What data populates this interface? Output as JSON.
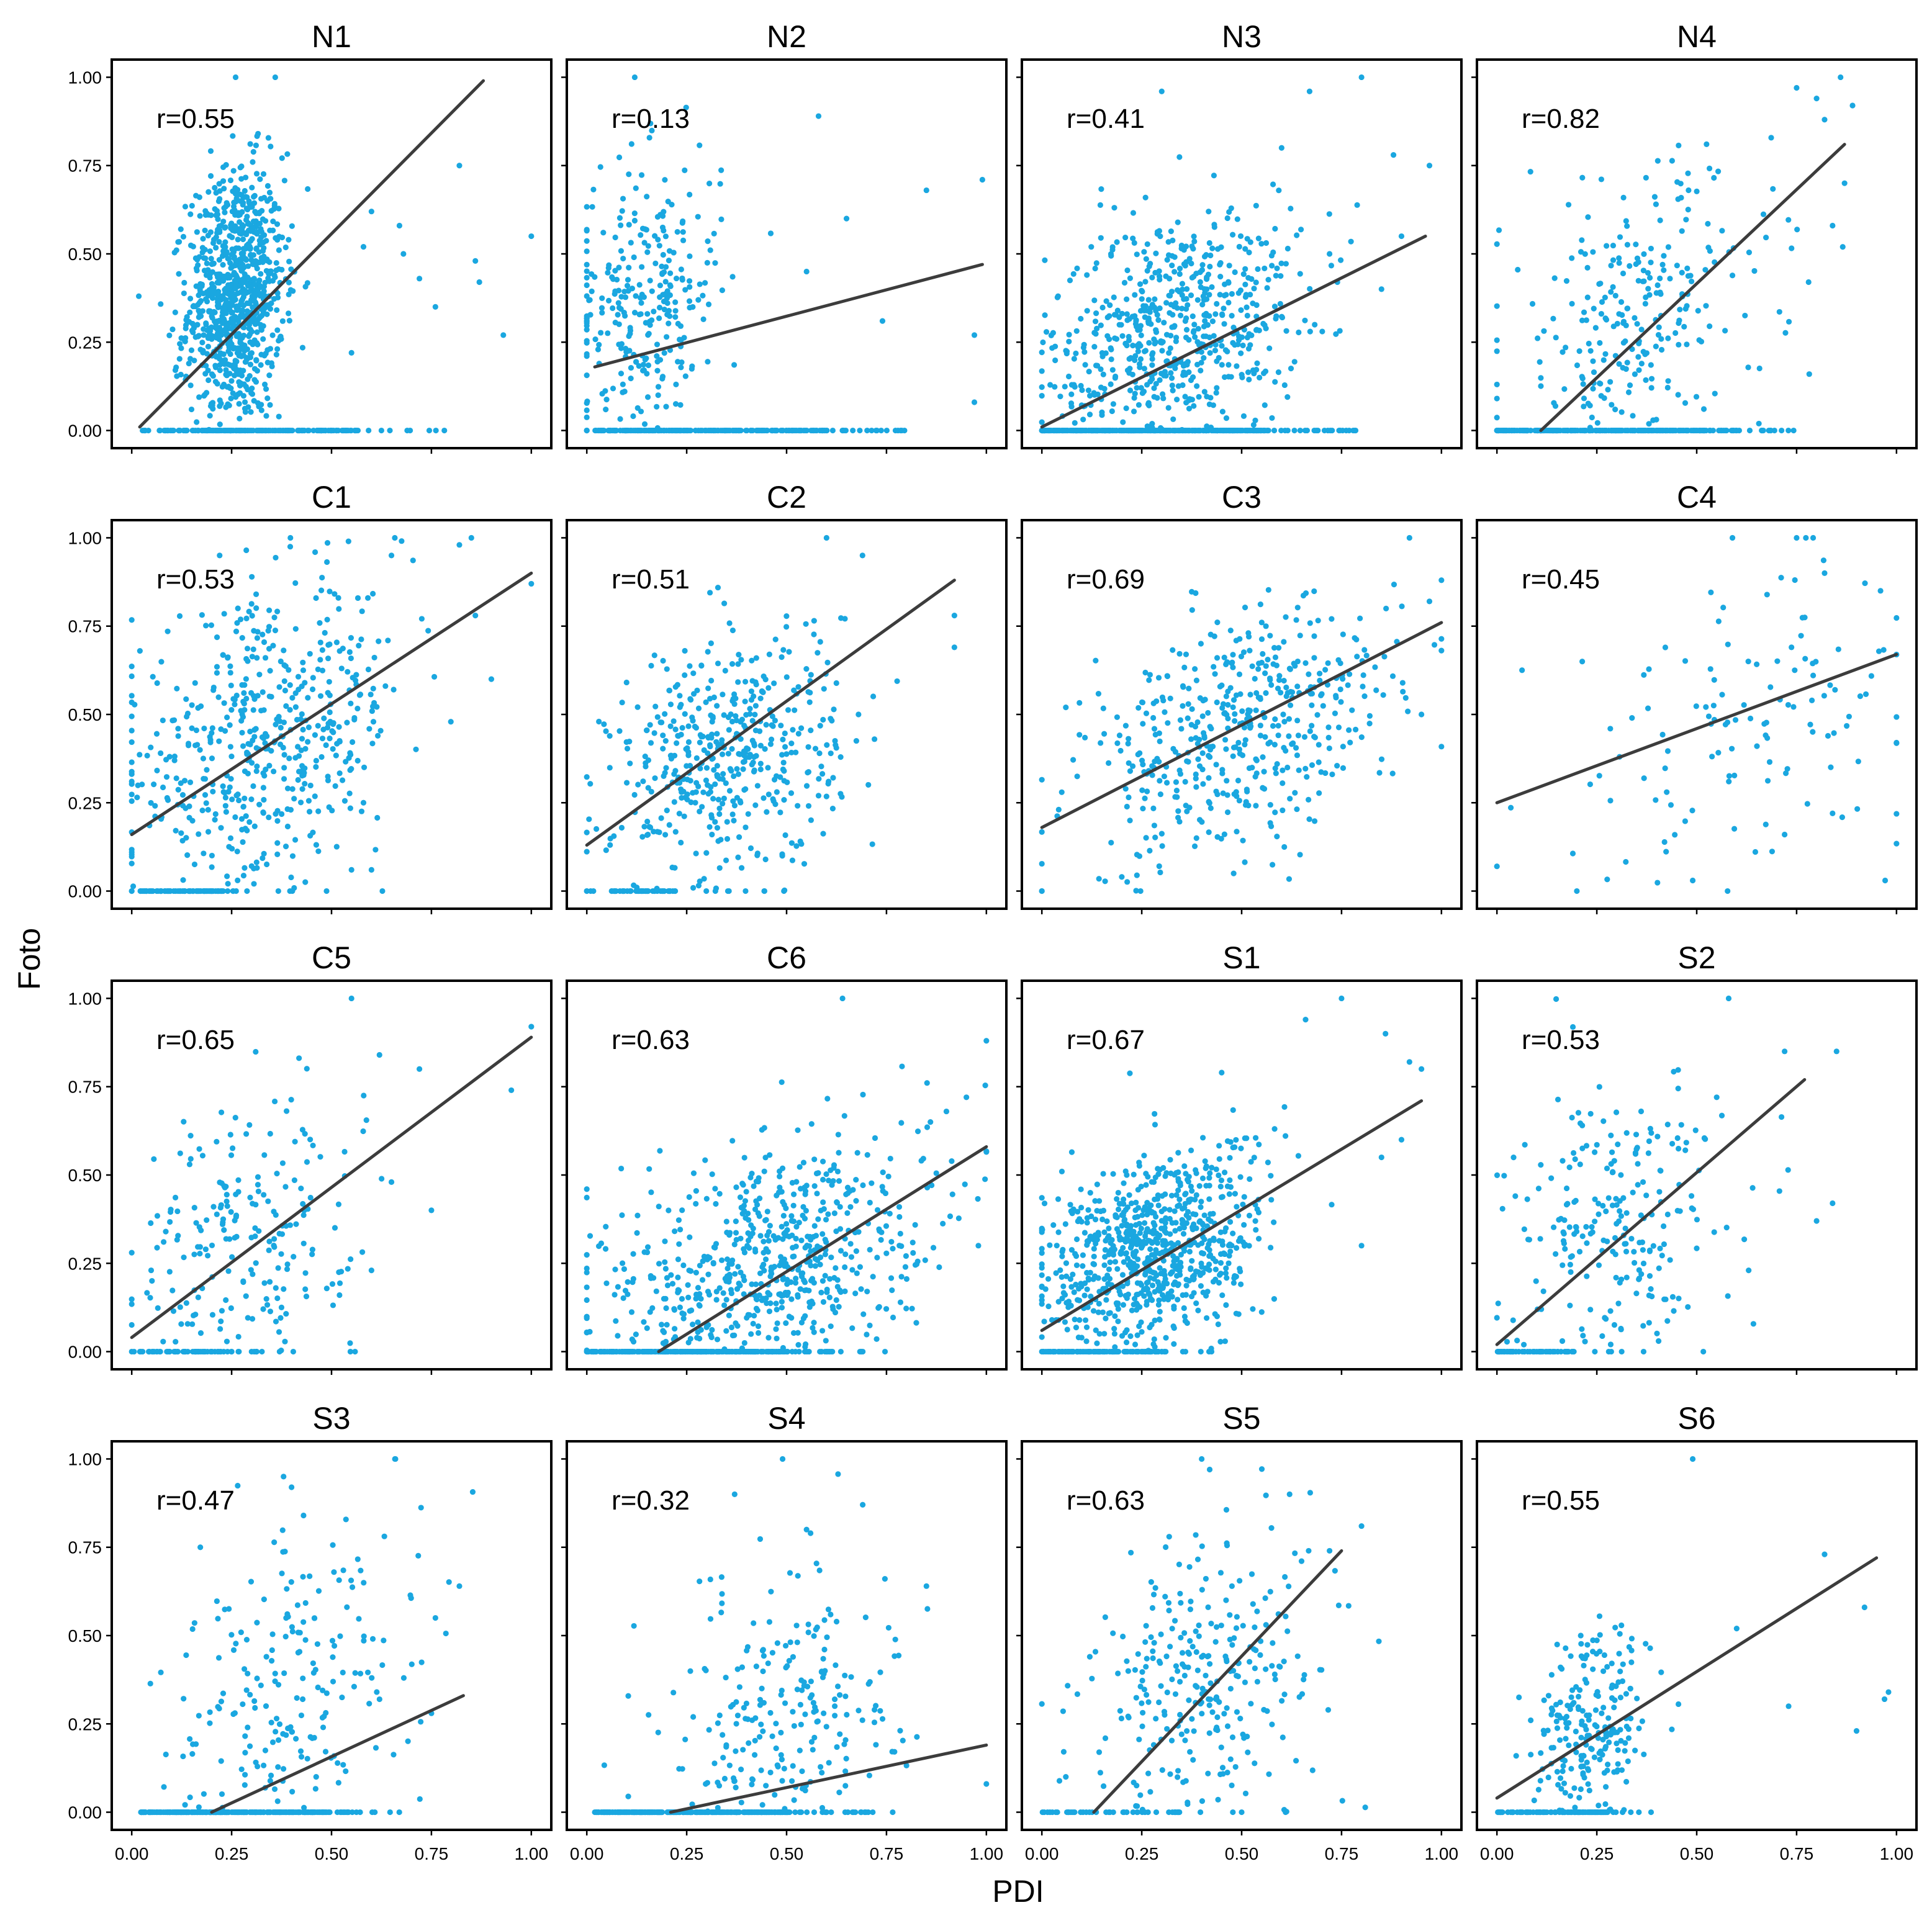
{
  "chart_data": {
    "type": "scatter",
    "layout": "4x4 facet grid",
    "xlabel": "PDI",
    "ylabel": "Foto",
    "xlim": [
      -0.05,
      1.05
    ],
    "ylim": [
      -0.05,
      1.05
    ],
    "x_ticks": [
      "0.00",
      "0.25",
      "0.50",
      "0.75",
      "1.00"
    ],
    "y_ticks": [
      "0.00",
      "0.25",
      "0.50",
      "0.75",
      "1.00"
    ],
    "point_color": "#1aa7e0",
    "line_color": "#3c3c3c",
    "panels": [
      {
        "title": "N1",
        "r": "r=0.55",
        "line": [
          [
            0.02,
            0.01
          ],
          [
            0.88,
            0.99
          ]
        ],
        "n": 1100,
        "x": [
          0.26,
          0.06
        ],
        "y": [
          0.38,
          0.18
        ],
        "zeroFrac": 0.16,
        "zeroX": [
          0.02,
          0.8
        ],
        "outliers": [
          [
            1.0,
            0.55
          ],
          [
            0.93,
            0.27
          ],
          [
            0.87,
            0.42
          ],
          [
            0.86,
            0.48
          ],
          [
            0.82,
            0.75
          ],
          [
            0.76,
            0.35
          ],
          [
            0.68,
            0.5
          ],
          [
            0.67,
            0.58
          ],
          [
            0.6,
            0.62
          ],
          [
            0.58,
            0.52
          ],
          [
            0.55,
            0.22
          ],
          [
            0.26,
            1.0
          ],
          [
            0.72,
            0.43
          ]
        ]
      },
      {
        "title": "N2",
        "r": "r=0.13",
        "line": [
          [
            0.02,
            0.18
          ],
          [
            0.99,
            0.47
          ]
        ],
        "n": 520,
        "x": [
          0.14,
          0.1
        ],
        "y": [
          0.36,
          0.2
        ],
        "zeroFrac": 0.42,
        "zeroX": [
          0.02,
          0.85
        ],
        "outliers": [
          [
            0.99,
            0.71
          ],
          [
            0.97,
            0.08
          ],
          [
            0.97,
            0.27
          ],
          [
            0.85,
            0.68
          ],
          [
            0.58,
            0.89
          ],
          [
            0.12,
            1.0
          ],
          [
            0.74,
            0.31
          ],
          [
            0.55,
            0.45
          ],
          [
            0.65,
            0.6
          ]
        ]
      },
      {
        "title": "N3",
        "r": "r=0.41",
        "line": [
          [
            0.0,
            0.01
          ],
          [
            0.96,
            0.55
          ]
        ],
        "n": 1000,
        "x": [
          0.33,
          0.16
        ],
        "y": [
          0.28,
          0.17
        ],
        "zeroFrac": 0.35,
        "zeroX": [
          0.0,
          0.8
        ],
        "outliers": [
          [
            0.8,
            1.0
          ],
          [
            0.97,
            0.75
          ],
          [
            0.67,
            0.96
          ],
          [
            0.85,
            0.4
          ],
          [
            0.88,
            0.78
          ],
          [
            0.72,
            0.5
          ],
          [
            0.6,
            0.8
          ],
          [
            0.9,
            0.55
          ],
          [
            0.3,
            0.96
          ]
        ]
      },
      {
        "title": "N4",
        "r": "r=0.82",
        "line": [
          [
            0.11,
            0.0
          ],
          [
            0.87,
            0.81
          ]
        ],
        "n": 560,
        "x": [
          0.35,
          0.17
        ],
        "y": [
          0.3,
          0.22
        ],
        "zeroFrac": 0.5,
        "zeroX": [
          0.0,
          0.75
        ],
        "outliers": [
          [
            0.86,
            1.0
          ],
          [
            0.89,
            0.92
          ],
          [
            0.8,
            0.94
          ],
          [
            0.87,
            0.7
          ],
          [
            0.84,
            0.58
          ],
          [
            0.78,
            0.42
          ],
          [
            0.75,
            0.97
          ],
          [
            0.82,
            0.88
          ]
        ]
      },
      {
        "title": "C1",
        "r": "r=0.53",
        "line": [
          [
            0.0,
            0.16
          ],
          [
            1.0,
            0.9
          ]
        ],
        "n": 600,
        "x": [
          0.33,
          0.18
        ],
        "y": [
          0.42,
          0.2
        ],
        "zeroFrac": 0.12,
        "zeroX": [
          0.02,
          0.32
        ],
        "outliers": [
          [
            1.0,
            0.87
          ],
          [
            0.85,
            1.0
          ],
          [
            0.82,
            0.98
          ],
          [
            0.65,
            0.95
          ],
          [
            0.9,
            0.6
          ],
          [
            0.86,
            0.78
          ],
          [
            0.58,
            0.25
          ],
          [
            0.6,
            0.06
          ],
          [
            0.55,
            0.06
          ],
          [
            0.22,
            0.95
          ]
        ]
      },
      {
        "title": "C2",
        "r": "r=0.51",
        "line": [
          [
            0.0,
            0.13
          ],
          [
            0.92,
            0.88
          ]
        ],
        "n": 520,
        "x": [
          0.35,
          0.14
        ],
        "y": [
          0.38,
          0.18
        ],
        "zeroFrac": 0.08,
        "zeroX": [
          0.06,
          0.28
        ],
        "outliers": [
          [
            0.92,
            0.78
          ],
          [
            0.92,
            0.69
          ],
          [
            0.72,
            0.43
          ],
          [
            0.6,
            1.0
          ],
          [
            0.69,
            0.95
          ],
          [
            0.58,
            0.27
          ],
          [
            0.0,
            0.0
          ],
          [
            0.68,
            0.5
          ]
        ]
      },
      {
        "title": "C3",
        "r": "r=0.69",
        "line": [
          [
            0.0,
            0.18
          ],
          [
            1.0,
            0.76
          ]
        ],
        "n": 480,
        "x": [
          0.5,
          0.2
        ],
        "y": [
          0.45,
          0.16
        ],
        "zeroFrac": 0.0,
        "zeroX": [
          0,
          0
        ],
        "outliers": [
          [
            0.0,
            0.0
          ],
          [
            0.92,
            1.0
          ],
          [
            1.0,
            0.88
          ],
          [
            0.97,
            0.82
          ],
          [
            0.2,
            0.04
          ],
          [
            0.48,
            0.05
          ],
          [
            0.06,
            0.52
          ],
          [
            0.95,
            0.5
          ]
        ]
      },
      {
        "title": "C4",
        "r": "r=0.45",
        "line": [
          [
            0.0,
            0.25
          ],
          [
            1.0,
            0.67
          ]
        ],
        "n": 120,
        "x": [
          0.62,
          0.22
        ],
        "y": [
          0.5,
          0.2
        ],
        "zeroFrac": 0.0,
        "zeroX": [
          0,
          0
        ],
        "outliers": [
          [
            0.0,
            0.07
          ],
          [
            0.2,
            0.0
          ],
          [
            0.49,
            0.03
          ],
          [
            0.75,
            1.0
          ],
          [
            0.82,
            0.9
          ],
          [
            0.96,
            0.85
          ],
          [
            1.0,
            0.42
          ],
          [
            0.84,
            0.22
          ],
          [
            0.72,
            0.16
          ]
        ]
      },
      {
        "title": "C5",
        "r": "r=0.65",
        "line": [
          [
            0.0,
            0.04
          ],
          [
            1.0,
            0.89
          ]
        ],
        "n": 280,
        "x": [
          0.28,
          0.14
        ],
        "y": [
          0.32,
          0.2
        ],
        "zeroFrac": 0.2,
        "zeroX": [
          0.02,
          0.35
        ],
        "outliers": [
          [
            1.0,
            0.92
          ],
          [
            0.95,
            0.74
          ],
          [
            0.55,
            1.0
          ],
          [
            0.62,
            0.84
          ],
          [
            0.72,
            0.8
          ],
          [
            0.75,
            0.4
          ],
          [
            0.6,
            0.23
          ],
          [
            0.65,
            0.48
          ],
          [
            0.52,
            0.16
          ]
        ]
      },
      {
        "title": "C6",
        "r": "r=0.63",
        "line": [
          [
            0.18,
            0.0
          ],
          [
            1.0,
            0.58
          ]
        ],
        "n": 900,
        "x": [
          0.45,
          0.2
        ],
        "y": [
          0.25,
          0.17
        ],
        "zeroFrac": 0.26,
        "zeroX": [
          0.0,
          0.72
        ],
        "outliers": [
          [
            1.0,
            0.88
          ],
          [
            0.64,
            1.0
          ],
          [
            0.98,
            0.3
          ],
          [
            0.95,
            0.72
          ],
          [
            0.9,
            0.68
          ],
          [
            0.86,
            0.65
          ]
        ]
      },
      {
        "title": "S1",
        "r": "r=0.67",
        "line": [
          [
            0.0,
            0.06
          ],
          [
            0.95,
            0.71
          ]
        ],
        "n": 900,
        "x": [
          0.28,
          0.14
        ],
        "y": [
          0.28,
          0.14
        ],
        "zeroFrac": 0.12,
        "zeroX": [
          0.0,
          0.45
        ],
        "outliers": [
          [
            0.75,
            1.0
          ],
          [
            0.66,
            0.94
          ],
          [
            0.86,
            0.9
          ],
          [
            0.92,
            0.82
          ],
          [
            0.95,
            0.8
          ],
          [
            0.8,
            0.3
          ],
          [
            0.9,
            0.6
          ],
          [
            0.85,
            0.55
          ],
          [
            0.45,
            0.79
          ]
        ]
      },
      {
        "title": "S2",
        "r": "r=0.53",
        "line": [
          [
            0.0,
            0.02
          ],
          [
            0.77,
            0.77
          ]
        ],
        "n": 300,
        "x": [
          0.3,
          0.13
        ],
        "y": [
          0.38,
          0.2
        ],
        "zeroFrac": 0.22,
        "zeroX": [
          0.0,
          0.28
        ],
        "outliers": [
          [
            0.58,
            1.0
          ],
          [
            0.84,
            0.42
          ],
          [
            0.8,
            0.37
          ],
          [
            0.72,
            0.85
          ],
          [
            0.63,
            0.23
          ],
          [
            0.55,
            0.72
          ],
          [
            0.85,
            0.85
          ]
        ]
      },
      {
        "title": "S3",
        "r": "r=0.47",
        "line": [
          [
            0.2,
            0.0
          ],
          [
            0.83,
            0.33
          ]
        ],
        "n": 480,
        "x": [
          0.4,
          0.16
        ],
        "y": [
          0.32,
          0.22
        ],
        "zeroFrac": 0.55,
        "zeroX": [
          0.02,
          0.68
        ],
        "outliers": [
          [
            0.66,
            1.0
          ],
          [
            0.38,
            0.95
          ],
          [
            0.82,
            0.64
          ],
          [
            0.76,
            0.55
          ],
          [
            0.75,
            0.28
          ],
          [
            0.4,
            0.92
          ],
          [
            0.43,
            0.84
          ]
        ]
      },
      {
        "title": "S4",
        "r": "r=0.32",
        "line": [
          [
            0.21,
            0.0
          ],
          [
            1.0,
            0.19
          ]
        ],
        "n": 500,
        "x": [
          0.5,
          0.14
        ],
        "y": [
          0.28,
          0.2
        ],
        "zeroFrac": 0.52,
        "zeroX": [
          0.02,
          0.72
        ],
        "outliers": [
          [
            0.49,
            1.0
          ],
          [
            1.0,
            0.08
          ],
          [
            0.85,
            0.64
          ],
          [
            0.37,
            0.9
          ],
          [
            0.55,
            0.8
          ],
          [
            0.56,
            0.79
          ],
          [
            0.72,
            0.29
          ]
        ]
      },
      {
        "title": "S5",
        "r": "r=0.63",
        "line": [
          [
            0.13,
            0.0
          ],
          [
            0.75,
            0.74
          ]
        ],
        "n": 320,
        "x": [
          0.42,
          0.16
        ],
        "y": [
          0.38,
          0.2
        ],
        "zeroFrac": 0.12,
        "zeroX": [
          0.0,
          0.5
        ],
        "outliers": [
          [
            0.4,
            1.0
          ],
          [
            0.42,
            0.97
          ],
          [
            0.8,
            0.81
          ],
          [
            0.72,
            0.74
          ],
          [
            0.62,
            0.9
          ],
          [
            0.12,
            0.44
          ],
          [
            0.06,
            0.1
          ],
          [
            0.5,
            0.0
          ]
        ]
      },
      {
        "title": "S6",
        "r": "r=0.55",
        "line": [
          [
            0.0,
            0.04
          ],
          [
            0.95,
            0.72
          ]
        ],
        "n": 320,
        "x": [
          0.24,
          0.07
        ],
        "y": [
          0.22,
          0.15
        ],
        "zeroFrac": 0.25,
        "zeroX": [
          0.0,
          0.4
        ],
        "outliers": [
          [
            0.49,
            1.0
          ],
          [
            0.82,
            0.73
          ],
          [
            0.92,
            0.58
          ],
          [
            0.98,
            0.34
          ],
          [
            0.97,
            0.32
          ],
          [
            0.9,
            0.23
          ],
          [
            0.73,
            0.3
          ],
          [
            0.6,
            0.52
          ]
        ]
      }
    ]
  }
}
